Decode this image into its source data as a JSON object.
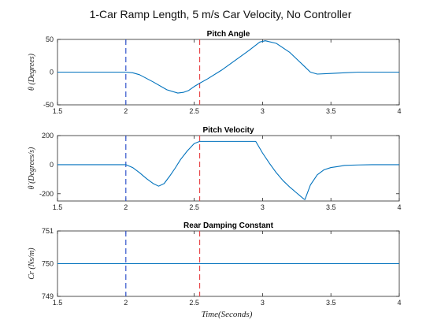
{
  "figure_title": "1-Car Ramp Length,  5 m/s Car Velocity,  No Controller",
  "xlabel": "Time(Seconds)",
  "colors": {
    "line": "#0072BD",
    "marker_blue": "#3355CC",
    "marker_red": "#E8474A",
    "axis": "#262626"
  },
  "chart_data": [
    {
      "type": "line",
      "title": "Pitch Angle",
      "ylabel": "θ (Degrees)",
      "xlim": [
        1.5,
        4
      ],
      "ylim": [
        -50,
        50
      ],
      "x_ticks": [
        "1.5",
        "2",
        "2.5",
        "3",
        "3.5",
        "4"
      ],
      "y_ticks": [
        "-50",
        "0",
        "50"
      ],
      "y_tick_values": [
        -50,
        0,
        50
      ],
      "vlines": [
        {
          "x": 2.0,
          "color": "blue",
          "style": "dashed"
        },
        {
          "x": 2.54,
          "color": "red",
          "style": "dashed"
        }
      ],
      "x": [
        1.5,
        2.0,
        2.05,
        2.1,
        2.2,
        2.3,
        2.38,
        2.42,
        2.46,
        2.5,
        2.54,
        2.6,
        2.7,
        2.8,
        2.9,
        2.98,
        3.02,
        3.1,
        3.2,
        3.3,
        3.35,
        3.4,
        3.5,
        3.6,
        3.7,
        3.8,
        4.0
      ],
      "y": [
        0,
        0,
        -1,
        -4,
        -15,
        -27,
        -32,
        -31,
        -28,
        -22,
        -17,
        -10,
        3,
        18,
        33,
        46,
        48,
        44,
        30,
        10,
        0,
        -3,
        -2,
        -1,
        0,
        0,
        0
      ]
    },
    {
      "type": "line",
      "title": "Pitch Velocity",
      "ylabel": "θ̇ (Degrees/s)",
      "xlim": [
        1.5,
        4
      ],
      "ylim": [
        -250,
        200
      ],
      "x_ticks": [
        "1.5",
        "2",
        "2.5",
        "3",
        "3.5",
        "4"
      ],
      "y_ticks": [
        "-200",
        "0",
        "200"
      ],
      "y_tick_values": [
        -200,
        0,
        200
      ],
      "vlines": [
        {
          "x": 2.0,
          "color": "blue",
          "style": "dashed"
        },
        {
          "x": 2.54,
          "color": "red",
          "style": "dashed"
        }
      ],
      "x": [
        1.5,
        2.0,
        2.05,
        2.1,
        2.15,
        2.2,
        2.24,
        2.28,
        2.32,
        2.36,
        2.4,
        2.45,
        2.5,
        2.54,
        2.6,
        2.7,
        2.8,
        2.9,
        2.95,
        3.0,
        3.05,
        3.1,
        3.15,
        3.2,
        3.25,
        3.3,
        3.31,
        3.35,
        3.4,
        3.45,
        3.5,
        3.55,
        3.6,
        3.7,
        3.8,
        3.9,
        4.0
      ],
      "y": [
        0,
        0,
        -20,
        -55,
        -95,
        -130,
        -148,
        -130,
        -80,
        -25,
        35,
        95,
        145,
        160,
        160,
        160,
        160,
        160,
        160,
        80,
        10,
        -55,
        -110,
        -155,
        -195,
        -235,
        -240,
        -140,
        -70,
        -35,
        -20,
        -13,
        -5,
        -2,
        0,
        0,
        0
      ]
    },
    {
      "type": "line",
      "title": "Rear Damping Constant",
      "ylabel": "Cr (Ns/m)",
      "xlim": [
        1.5,
        4
      ],
      "ylim": [
        749,
        751
      ],
      "x_ticks": [
        "1.5",
        "2",
        "2.5",
        "3",
        "3.5",
        "4"
      ],
      "y_ticks": [
        "749",
        "750",
        "751"
      ],
      "y_tick_values": [
        749,
        750,
        751
      ],
      "vlines": [
        {
          "x": 2.0,
          "color": "blue",
          "style": "dashed"
        },
        {
          "x": 2.54,
          "color": "red",
          "style": "dashed"
        }
      ],
      "x": [
        1.5,
        4.0
      ],
      "y": [
        750,
        750
      ]
    }
  ]
}
